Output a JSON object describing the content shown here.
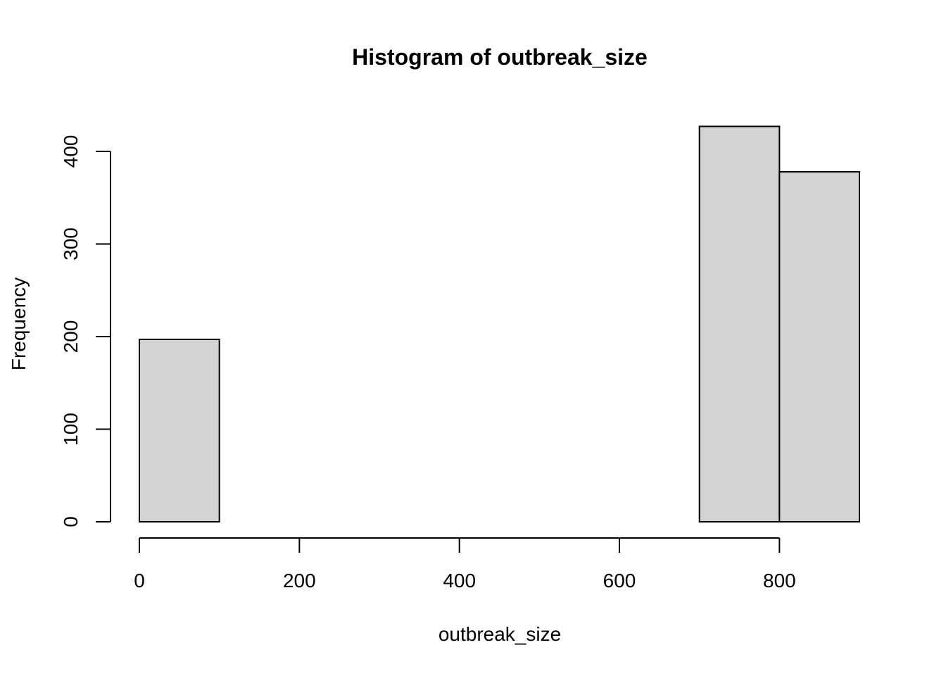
{
  "chart_data": {
    "type": "bar",
    "title": "Histogram of outbreak_size",
    "xlabel": "outbreak_size",
    "ylabel": "Frequency",
    "bins": [
      {
        "start": 0,
        "end": 100,
        "count": 197
      },
      {
        "start": 100,
        "end": 200,
        "count": 0
      },
      {
        "start": 200,
        "end": 300,
        "count": 0
      },
      {
        "start": 300,
        "end": 400,
        "count": 0
      },
      {
        "start": 400,
        "end": 500,
        "count": 0
      },
      {
        "start": 500,
        "end": 600,
        "count": 0
      },
      {
        "start": 600,
        "end": 700,
        "count": 0
      },
      {
        "start": 700,
        "end": 800,
        "count": 427
      },
      {
        "start": 800,
        "end": 900,
        "count": 378
      }
    ],
    "xticks": [
      0,
      200,
      400,
      600,
      800
    ],
    "yticks": [
      0,
      100,
      200,
      300,
      400
    ],
    "xlim": [
      0,
      900
    ],
    "ylim": [
      0,
      400
    ],
    "grid": false,
    "bar_color": "#d3d3d3"
  }
}
